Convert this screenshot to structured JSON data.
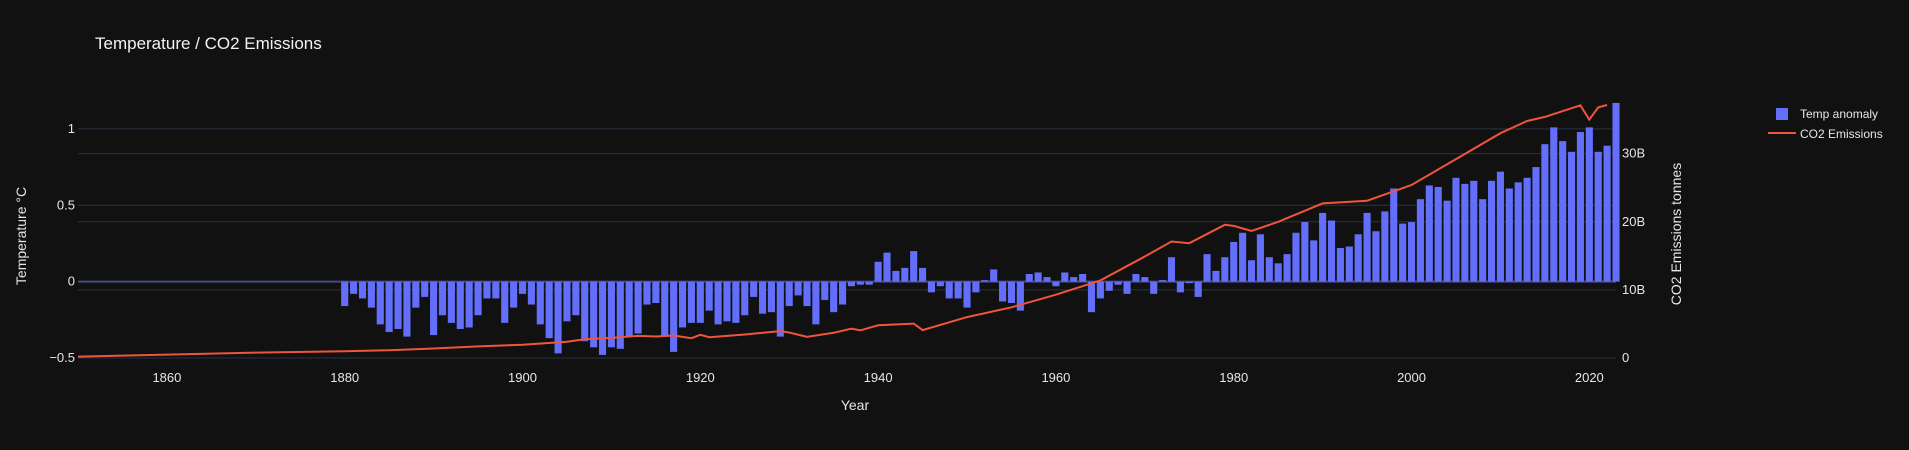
{
  "chart_data": {
    "title": "Temperature / CO2 Emissions",
    "xlabel": "Year",
    "ylabel_left": "Temperature °C",
    "ylabel_right": "CO2 Emissions tonnes",
    "x_range": [
      1850,
      2023
    ],
    "x_ticks": [
      1860,
      1880,
      1900,
      1920,
      1940,
      1960,
      1980,
      2000,
      2020
    ],
    "y_left_range": [
      -0.5,
      1.15
    ],
    "y_left_ticks": [
      {
        "v": -0.5,
        "label": "−0.5"
      },
      {
        "v": 0,
        "label": "0"
      },
      {
        "v": 0.5,
        "label": "0.5"
      },
      {
        "v": 1,
        "label": "1"
      }
    ],
    "y_right_range": [
      0,
      37000000000
    ],
    "y_right_ticks": [
      {
        "v": 0,
        "label": "0"
      },
      {
        "v": 10000000000,
        "label": "10B"
      },
      {
        "v": 20000000000,
        "label": "20B"
      },
      {
        "v": 30000000000,
        "label": "30B"
      }
    ],
    "legend_position": "top-right",
    "grid": true,
    "colors": {
      "background": "#111111",
      "bar": "#636efa",
      "line": "#ef553b",
      "grid": "#283442",
      "zeroline": "#444a8a",
      "text": "#e6e6e6"
    },
    "series": [
      {
        "name": "Temp anomaly",
        "type": "bar",
        "axis": "left",
        "x": [
          1880,
          1881,
          1882,
          1883,
          1884,
          1885,
          1886,
          1887,
          1888,
          1889,
          1890,
          1891,
          1892,
          1893,
          1894,
          1895,
          1896,
          1897,
          1898,
          1899,
          1900,
          1901,
          1902,
          1903,
          1904,
          1905,
          1906,
          1907,
          1908,
          1909,
          1910,
          1911,
          1912,
          1913,
          1914,
          1915,
          1916,
          1917,
          1918,
          1919,
          1920,
          1921,
          1922,
          1923,
          1924,
          1925,
          1926,
          1927,
          1928,
          1929,
          1930,
          1931,
          1932,
          1933,
          1934,
          1935,
          1936,
          1937,
          1938,
          1939,
          1940,
          1941,
          1942,
          1943,
          1944,
          1945,
          1946,
          1947,
          1948,
          1949,
          1950,
          1951,
          1952,
          1953,
          1954,
          1955,
          1956,
          1957,
          1958,
          1959,
          1960,
          1961,
          1962,
          1963,
          1964,
          1965,
          1966,
          1967,
          1968,
          1969,
          1970,
          1971,
          1972,
          1973,
          1974,
          1975,
          1976,
          1977,
          1978,
          1979,
          1980,
          1981,
          1982,
          1983,
          1984,
          1985,
          1986,
          1987,
          1988,
          1989,
          1990,
          1991,
          1992,
          1993,
          1994,
          1995,
          1996,
          1997,
          1998,
          1999,
          2000,
          2001,
          2002,
          2003,
          2004,
          2005,
          2006,
          2007,
          2008,
          2009,
          2010,
          2011,
          2012,
          2013,
          2014,
          2015,
          2016,
          2017,
          2018,
          2019,
          2020,
          2021,
          2022,
          2023
        ],
        "values": [
          -0.16,
          -0.08,
          -0.11,
          -0.17,
          -0.28,
          -0.33,
          -0.31,
          -0.36,
          -0.17,
          -0.1,
          -0.35,
          -0.22,
          -0.27,
          -0.31,
          -0.3,
          -0.22,
          -0.11,
          -0.11,
          -0.27,
          -0.17,
          -0.08,
          -0.15,
          -0.28,
          -0.37,
          -0.47,
          -0.26,
          -0.22,
          -0.39,
          -0.43,
          -0.48,
          -0.43,
          -0.44,
          -0.36,
          -0.34,
          -0.15,
          -0.14,
          -0.36,
          -0.46,
          -0.3,
          -0.27,
          -0.27,
          -0.19,
          -0.28,
          -0.26,
          -0.27,
          -0.22,
          -0.1,
          -0.21,
          -0.2,
          -0.36,
          -0.16,
          -0.09,
          -0.16,
          -0.28,
          -0.12,
          -0.2,
          -0.15,
          -0.03,
          -0.02,
          -0.02,
          0.13,
          0.19,
          0.07,
          0.09,
          0.2,
          0.09,
          -0.07,
          -0.03,
          -0.11,
          -0.11,
          -0.17,
          -0.07,
          0.01,
          0.08,
          -0.13,
          -0.14,
          -0.19,
          0.05,
          0.06,
          0.03,
          -0.03,
          0.06,
          0.03,
          0.05,
          -0.2,
          -0.11,
          -0.06,
          -0.02,
          -0.08,
          0.05,
          0.03,
          -0.08,
          0.01,
          0.16,
          -0.07,
          -0.01,
          -0.1,
          0.18,
          0.07,
          0.16,
          0.26,
          0.32,
          0.14,
          0.31,
          0.16,
          0.12,
          0.18,
          0.32,
          0.39,
          0.27,
          0.45,
          0.4,
          0.22,
          0.23,
          0.31,
          0.45,
          0.33,
          0.46,
          0.61,
          0.38,
          0.39,
          0.54,
          0.63,
          0.62,
          0.53,
          0.68,
          0.64,
          0.66,
          0.54,
          0.66,
          0.72,
          0.61,
          0.65,
          0.68,
          0.75,
          0.9,
          1.01,
          0.92,
          0.85,
          0.98,
          1.01,
          0.85,
          0.89,
          1.17
        ]
      },
      {
        "name": "CO2 Emissions",
        "type": "line",
        "axis": "right",
        "x": [
          1850,
          1860,
          1870,
          1880,
          1885,
          1890,
          1895,
          1900,
          1905,
          1907,
          1910,
          1913,
          1915,
          1917,
          1919,
          1920,
          1921,
          1925,
          1929,
          1930,
          1932,
          1935,
          1937,
          1938,
          1940,
          1944,
          1945,
          1950,
          1955,
          1960,
          1965,
          1970,
          1973,
          1975,
          1979,
          1980,
          1982,
          1985,
          1990,
          1995,
          2000,
          2005,
          2010,
          2013,
          2015,
          2019,
          2020,
          2021,
          2022
        ],
        "values": [
          200000000,
          500000000,
          800000000,
          1000000000,
          1150000000,
          1400000000,
          1700000000,
          1950000000,
          2400000000,
          2750000000,
          2950000000,
          3250000000,
          3150000000,
          3300000000,
          2900000000,
          3400000000,
          3050000000,
          3450000000,
          3950000000,
          3750000000,
          3100000000,
          3700000000,
          4300000000,
          4050000000,
          4800000000,
          5050000000,
          4100000000,
          6000000000,
          7450000000,
          9300000000,
          11400000000,
          14900000000,
          17100000000,
          16850000000,
          19550000000,
          19400000000,
          18650000000,
          20000000000,
          22700000000,
          23100000000,
          25400000000,
          29200000000,
          33000000000,
          34800000000,
          35400000000,
          37100000000,
          35000000000,
          36800000000,
          37150000000
        ]
      }
    ]
  }
}
